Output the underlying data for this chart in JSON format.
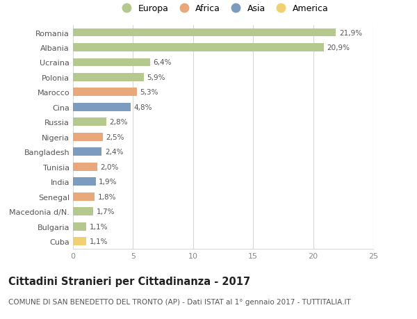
{
  "categories": [
    "Romania",
    "Albania",
    "Ucraina",
    "Polonia",
    "Marocco",
    "Cina",
    "Russia",
    "Nigeria",
    "Bangladesh",
    "Tunisia",
    "India",
    "Senegal",
    "Macedonia d/N.",
    "Bulgaria",
    "Cuba"
  ],
  "values": [
    21.9,
    20.9,
    6.4,
    5.9,
    5.3,
    4.8,
    2.8,
    2.5,
    2.4,
    2.0,
    1.9,
    1.8,
    1.7,
    1.1,
    1.1
  ],
  "labels": [
    "21,9%",
    "20,9%",
    "6,4%",
    "5,9%",
    "5,3%",
    "4,8%",
    "2,8%",
    "2,5%",
    "2,4%",
    "2,0%",
    "1,9%",
    "1,8%",
    "1,7%",
    "1,1%",
    "1,1%"
  ],
  "continents": [
    "Europa",
    "Europa",
    "Europa",
    "Europa",
    "Africa",
    "Asia",
    "Europa",
    "Africa",
    "Asia",
    "Africa",
    "Asia",
    "Africa",
    "Europa",
    "Europa",
    "America"
  ],
  "colors": {
    "Europa": "#b5c98e",
    "Africa": "#e8a87c",
    "Asia": "#7b9bbf",
    "America": "#f0d070"
  },
  "legend_order": [
    "Europa",
    "Africa",
    "Asia",
    "America"
  ],
  "xlim": [
    0,
    25
  ],
  "xticks": [
    0,
    5,
    10,
    15,
    20,
    25
  ],
  "title": "Cittadini Stranieri per Cittadinanza - 2017",
  "subtitle": "COMUNE DI SAN BENEDETTO DEL TRONTO (AP) - Dati ISTAT al 1° gennaio 2017 - TUTTITALIA.IT",
  "bg_color": "#ffffff",
  "grid_color": "#d8d8d8",
  "bar_height": 0.55,
  "title_fontsize": 10.5,
  "subtitle_fontsize": 7.5,
  "label_fontsize": 7.5,
  "tick_fontsize": 8,
  "legend_fontsize": 9
}
